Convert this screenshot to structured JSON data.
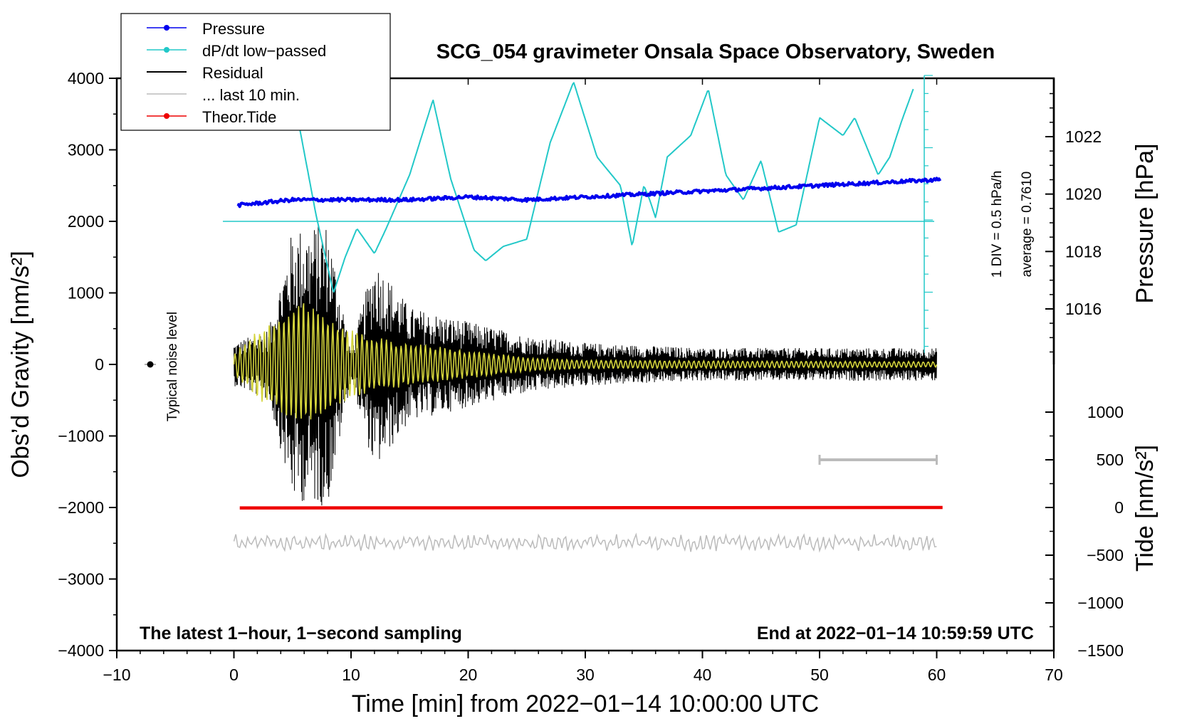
{
  "chart_data": {
    "type": "line",
    "title": "SCG_054 gravimeter Onsala Space Observatory, Sweden",
    "xlabel": "Time [min] from 2022−01−14 10:00:00 UTC",
    "ylabel": "Obs’d Gravity [nm/s²]",
    "ylabel_right_pressure": "Pressure [hPa]",
    "ylabel_right_tide": "Tide [nm/s²]",
    "xlim": [
      -10,
      70
    ],
    "ylim": [
      -4000,
      4000
    ],
    "x_ticks": [
      -10,
      0,
      10,
      20,
      30,
      40,
      50,
      60,
      70
    ],
    "x_tick_labels": [
      "−10",
      "0",
      "10",
      "20",
      "30",
      "40",
      "50",
      "60",
      "70"
    ],
    "y_ticks": [
      4000,
      3000,
      2000,
      1000,
      0,
      -1000,
      -2000,
      -3000,
      -4000
    ],
    "y_tick_labels": [
      "4000",
      "3000",
      "2000",
      "1000",
      "0",
      "−1000",
      "−2000",
      "−3000",
      "−4000"
    ],
    "pressure_axis": {
      "ticks": [
        1022,
        1020,
        1018,
        1016
      ],
      "tick_labels": [
        "1022",
        "1020",
        "1018",
        "1016"
      ],
      "range_hpa": [
        1014,
        1024
      ]
    },
    "tide_axis": {
      "ticks": [
        1000,
        500,
        0,
        -500,
        -1000,
        -1500
      ],
      "tick_labels": [
        "1000",
        "500",
        "0",
        "−500",
        "−1000",
        "−1500"
      ],
      "range": [
        -1500,
        1000
      ]
    },
    "legend": [
      {
        "label": "Pressure",
        "color": "#0000ee",
        "marker": true
      },
      {
        "label": "dP/dt low−passed",
        "color": "#22c8c8",
        "marker": true
      },
      {
        "label": "Residual",
        "color": "#000000",
        "marker": false
      },
      {
        "label": "... last 10 min.",
        "color": "#bbbbbb",
        "marker": false
      },
      {
        "label": "Theor.Tide",
        "color": "#ee0000",
        "marker": true
      }
    ],
    "series": [
      {
        "name": "Pressure",
        "axis": "pressure",
        "color": "#0000ee",
        "x": [
          0,
          5,
          10,
          15,
          20,
          25,
          30,
          35,
          40,
          45,
          50,
          55,
          60
        ],
        "values": [
          1019.6,
          1019.8,
          1019.8,
          1019.8,
          1019.9,
          1019.8,
          1019.9,
          1020.0,
          1020.1,
          1020.2,
          1020.3,
          1020.4,
          1020.5
        ]
      },
      {
        "name": "dP/dt low−passed",
        "axis": "dpdt",
        "color": "#22c8c8",
        "x": [
          5.5,
          7,
          8.5,
          9.5,
          10.5,
          12,
          13,
          15,
          17,
          18.5,
          20.5,
          21.5,
          23,
          25,
          27,
          29,
          31,
          33,
          34,
          35,
          35.5,
          36,
          37,
          38,
          39,
          40.5,
          42,
          43.5,
          45,
          46.5,
          48,
          50,
          52,
          53,
          54,
          55,
          56,
          57,
          58
        ],
        "values": [
          3400,
          2100,
          1000,
          1500,
          1900,
          1550,
          1900,
          2650,
          3700,
          2600,
          1600,
          1450,
          1650,
          1750,
          3100,
          3950,
          2900,
          2500,
          1650,
          2500,
          2300,
          2050,
          2900,
          3050,
          3200,
          3850,
          2650,
          2300,
          2850,
          1850,
          1950,
          3450,
          3200,
          3450,
          3050,
          2650,
          2900,
          3400,
          3850
        ]
      },
      {
        "name": "Residual",
        "color": "#000000",
        "x_range": [
          0,
          60
        ],
        "envelope": [
          [
            0,
            300
          ],
          [
            3,
            500
          ],
          [
            5,
            1900
          ],
          [
            8,
            2000
          ],
          [
            10,
            200
          ],
          [
            12,
            1500
          ],
          [
            15,
            800
          ],
          [
            20,
            600
          ],
          [
            25,
            400
          ],
          [
            30,
            300
          ],
          [
            40,
            230
          ],
          [
            50,
            230
          ],
          [
            60,
            230
          ]
        ]
      },
      {
        "name": "Band-passed residual (yellow)",
        "color": "#d4d43c",
        "x_range": [
          0,
          60
        ],
        "envelope": [
          [
            0,
            150
          ],
          [
            2,
            500
          ],
          [
            6,
            900
          ],
          [
            10,
            500
          ],
          [
            13,
            350
          ],
          [
            20,
            200
          ],
          [
            25,
            100
          ],
          [
            30,
            60
          ],
          [
            60,
            40
          ]
        ]
      },
      {
        "name": "... last 10 min.",
        "color": "#bbbbbb",
        "axis": "tide",
        "x_range": [
          0,
          60
        ],
        "baseline": -370,
        "amplitude": 90
      },
      {
        "name": "Theor.Tide",
        "axis": "tide",
        "color": "#ee0000",
        "x": [
          0.5,
          60.5
        ],
        "values": [
          -5,
          0
        ]
      }
    ],
    "last_10_min_bar": {
      "x": [
        50,
        60
      ],
      "tide_value": 500
    },
    "annotations": {
      "noise_label": "Typical noise level",
      "pressure_scale": "1 DIV = 0.5 hPa/h",
      "average": "average = 0.7610",
      "bottom_left": "The latest 1−hour, 1−second sampling",
      "bottom_right": "End at 2022−01−14 10:59:59 UTC"
    }
  }
}
